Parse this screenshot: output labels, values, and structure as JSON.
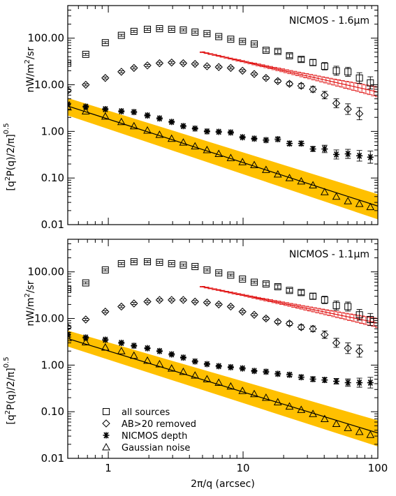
{
  "chart_data": {
    "type": "scatter",
    "x_scale": "log",
    "y_scale": "log",
    "xlim": [
      0.5,
      100
    ],
    "ylim": [
      0.01,
      500
    ],
    "xlabel": "2π/q  (arcsec)",
    "x_tick_labels": [
      "1",
      "10",
      "100"
    ],
    "x_tick_values": [
      1,
      10,
      100
    ],
    "y_tick_labels": [
      "0.01",
      "0.10",
      "1.00",
      "10.00",
      "100.00"
    ],
    "y_tick_values": [
      0.01,
      0.1,
      1,
      10,
      100
    ],
    "ylabel_left": "[q²P(q)/2/π]^0.5",
    "ylabel_right": "nW/m²/sr",
    "legend": {
      "placement": "lower-left",
      "entries": [
        {
          "marker": "square",
          "label": "all sources"
        },
        {
          "marker": "diamond",
          "label": "AB>20 removed"
        },
        {
          "marker": "asterisk",
          "label": "NICMOS depth"
        },
        {
          "marker": "triangle",
          "label": "Gaussian noise"
        }
      ]
    },
    "colors": {
      "band": "#FFC000",
      "red_series": "#e01010",
      "black": "#000000"
    },
    "panels": [
      {
        "label": "NICMOS - 1.6μm",
        "all_sources": {
          "x": [
            0.5,
            0.68,
            0.95,
            1.25,
            1.55,
            1.95,
            2.4,
            2.95,
            3.6,
            4.4,
            5.4,
            6.6,
            8.1,
            9.9,
            12.1,
            14.8,
            18.1,
            22.1,
            27.0,
            33.0,
            40.3,
            49.2,
            60.0,
            73.0,
            88.0
          ],
          "y": [
            29,
            45,
            80,
            115,
            140,
            155,
            160,
            155,
            150,
            135,
            125,
            108,
            95,
            85,
            75,
            55,
            52,
            42,
            35,
            30,
            25,
            20,
            19,
            14,
            11
          ],
          "err": [
            0.05,
            0.05,
            0.05,
            0.05,
            0.05,
            0.05,
            0.05,
            0.05,
            0.05,
            0.05,
            0.05,
            0.05,
            0.05,
            0.05,
            0.05,
            0.08,
            0.1,
            0.1,
            0.12,
            0.15,
            0.2,
            0.25,
            0.25,
            0.3,
            0.35
          ]
        },
        "ab20_removed": {
          "x": [
            0.5,
            0.68,
            0.95,
            1.25,
            1.55,
            1.95,
            2.4,
            2.95,
            3.6,
            4.4,
            5.4,
            6.6,
            8.1,
            9.9,
            12.1,
            14.8,
            18.1,
            22.1,
            27.0,
            33.0,
            40.3,
            49.2,
            60.0,
            73.0
          ],
          "y": [
            7.5,
            10,
            14,
            19,
            23,
            26,
            29,
            30,
            29,
            28,
            25,
            24,
            23,
            20,
            17,
            14,
            12,
            10.5,
            9.5,
            8,
            6,
            4,
            3,
            2.4
          ],
          "err": [
            0.05,
            0.05,
            0.05,
            0.05,
            0.05,
            0.05,
            0.05,
            0.05,
            0.05,
            0.05,
            0.05,
            0.05,
            0.05,
            0.05,
            0.05,
            0.07,
            0.08,
            0.1,
            0.12,
            0.15,
            0.2,
            0.25,
            0.3,
            0.35
          ]
        },
        "nicmos_depth": {
          "x": [
            0.5,
            0.68,
            0.95,
            1.25,
            1.55,
            1.95,
            2.4,
            2.95,
            3.6,
            4.4,
            5.4,
            6.6,
            8.1,
            9.9,
            12.1,
            14.8,
            18.1,
            22.1,
            27.0,
            33.0,
            40.3,
            49.2,
            60.0,
            73.0,
            88.0
          ],
          "y": [
            3.8,
            3.4,
            3.0,
            2.7,
            2.6,
            2.2,
            1.9,
            1.6,
            1.3,
            1.15,
            1.0,
            0.98,
            0.95,
            0.75,
            0.7,
            0.65,
            0.68,
            0.55,
            0.55,
            0.42,
            0.42,
            0.32,
            0.33,
            0.3,
            0.28
          ],
          "err": [
            0.05,
            0.05,
            0.05,
            0.05,
            0.05,
            0.05,
            0.05,
            0.05,
            0.05,
            0.05,
            0.05,
            0.05,
            0.05,
            0.05,
            0.05,
            0.07,
            0.08,
            0.1,
            0.1,
            0.12,
            0.2,
            0.25,
            0.25,
            0.3,
            0.35
          ]
        },
        "gaussian_noise": {
          "x": [
            0.5,
            0.68,
            0.95,
            1.25,
            1.55,
            1.95,
            2.4,
            2.95,
            3.6,
            4.4,
            5.4,
            6.6,
            8.1,
            9.9,
            12.1,
            14.8,
            18.1,
            22.1,
            27.0,
            33.0,
            40.3,
            49.2,
            60.0,
            73.0,
            88.0
          ],
          "y": [
            3.3,
            2.7,
            2.1,
            1.6,
            1.3,
            1.05,
            0.85,
            0.7,
            0.58,
            0.48,
            0.4,
            0.33,
            0.27,
            0.22,
            0.19,
            0.15,
            0.12,
            0.1,
            0.085,
            0.07,
            0.05,
            0.04,
            0.032,
            0.028,
            0.024
          ]
        },
        "red_series": {
          "x_range": [
            5.0,
            100
          ],
          "y_range": [
            50,
            7
          ],
          "points": 45,
          "err_growth": 0.25
        },
        "fit_line": {
          "x": [
            0.5,
            100
          ],
          "y": [
            3.5,
            0.025
          ]
        },
        "band": {
          "x": [
            0.5,
            100
          ],
          "lower": [
            2.2,
            0.013
          ],
          "upper": [
            5.2,
            0.045
          ]
        }
      },
      {
        "label": "NICMOS - 1.1μm",
        "all_sources": {
          "x": [
            0.5,
            0.68,
            0.95,
            1.25,
            1.55,
            1.95,
            2.4,
            2.95,
            3.6,
            4.4,
            5.4,
            6.6,
            8.1,
            9.9,
            12.1,
            14.8,
            18.1,
            22.1,
            27.0,
            33.0,
            40.3,
            49.2,
            60.0,
            73.0,
            88.0
          ],
          "y": [
            42,
            58,
            110,
            150,
            165,
            165,
            160,
            150,
            140,
            130,
            110,
            95,
            85,
            70,
            60,
            55,
            48,
            40,
            36,
            30,
            25,
            19,
            18,
            12,
            9.5
          ],
          "err": [
            0.05,
            0.05,
            0.05,
            0.05,
            0.05,
            0.05,
            0.05,
            0.05,
            0.05,
            0.05,
            0.05,
            0.05,
            0.05,
            0.05,
            0.05,
            0.08,
            0.1,
            0.1,
            0.12,
            0.15,
            0.2,
            0.25,
            0.25,
            0.3,
            0.35
          ]
        },
        "ab20_removed": {
          "x": [
            0.5,
            0.68,
            0.95,
            1.25,
            1.55,
            1.95,
            2.4,
            2.95,
            3.6,
            4.4,
            5.4,
            6.6,
            8.1,
            9.9,
            12.1,
            14.8,
            18.1,
            22.1,
            27.0,
            33.0,
            40.3,
            49.2,
            60.0,
            73.0
          ],
          "y": [
            6.5,
            9.5,
            14,
            18,
            21,
            23,
            25,
            25,
            25,
            23,
            22,
            20,
            18,
            14,
            12,
            10,
            8.5,
            7.8,
            6.5,
            6,
            4.5,
            3,
            2.3,
            2.0
          ],
          "err": [
            0.05,
            0.05,
            0.05,
            0.05,
            0.05,
            0.05,
            0.05,
            0.05,
            0.05,
            0.05,
            0.05,
            0.05,
            0.05,
            0.05,
            0.05,
            0.07,
            0.08,
            0.1,
            0.12,
            0.15,
            0.2,
            0.25,
            0.3,
            0.35
          ]
        },
        "nicmos_depth": {
          "x": [
            0.5,
            0.68,
            0.95,
            1.25,
            1.55,
            1.95,
            2.4,
            2.95,
            3.6,
            4.4,
            5.4,
            6.6,
            8.1,
            9.9,
            12.1,
            14.8,
            18.1,
            22.1,
            27.0,
            33.0,
            40.3,
            49.2,
            60.0,
            73.0,
            88.0
          ],
          "y": [
            4.5,
            3.9,
            3.5,
            3.0,
            2.6,
            2.3,
            2.0,
            1.7,
            1.45,
            1.2,
            1.05,
            0.95,
            0.9,
            0.85,
            0.75,
            0.72,
            0.65,
            0.62,
            0.55,
            0.5,
            0.48,
            0.45,
            0.42,
            0.42,
            0.42
          ],
          "err": [
            0.05,
            0.05,
            0.05,
            0.05,
            0.05,
            0.05,
            0.05,
            0.05,
            0.05,
            0.05,
            0.05,
            0.05,
            0.05,
            0.05,
            0.05,
            0.06,
            0.07,
            0.08,
            0.09,
            0.1,
            0.12,
            0.15,
            0.2,
            0.25,
            0.3
          ]
        },
        "gaussian_noise": {
          "x": [
            0.5,
            0.68,
            0.95,
            1.25,
            1.55,
            1.95,
            2.4,
            2.95,
            3.6,
            4.4,
            5.4,
            6.6,
            8.1,
            9.9,
            12.1,
            14.8,
            18.1,
            22.1,
            27.0,
            33.0,
            40.3,
            49.2,
            60.0,
            73.0,
            88.0
          ],
          "y": [
            3.8,
            3.1,
            2.4,
            2.0,
            1.6,
            1.25,
            1.05,
            0.85,
            0.72,
            0.6,
            0.5,
            0.42,
            0.35,
            0.28,
            0.24,
            0.2,
            0.16,
            0.13,
            0.11,
            0.09,
            0.07,
            0.055,
            0.045,
            0.037,
            0.032
          ]
        },
        "red_series": {
          "x_range": [
            5.0,
            100
          ],
          "y_range": [
            48,
            8
          ],
          "points": 45,
          "err_growth": 0.22
        },
        "fit_line": {
          "x": [
            0.5,
            100
          ],
          "y": [
            3.7,
            0.035
          ]
        },
        "band": {
          "x": [
            0.5,
            100
          ],
          "lower": [
            2.5,
            0.018
          ],
          "upper": [
            5.5,
            0.065
          ]
        }
      }
    ]
  }
}
